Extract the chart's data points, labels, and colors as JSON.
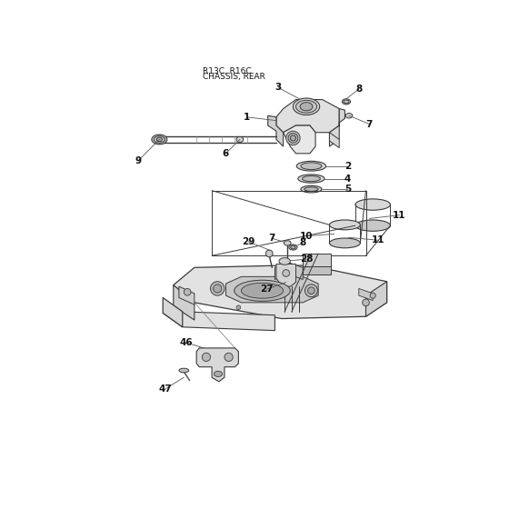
{
  "title_line1": "R13C, R16C",
  "title_line2": "CHASSIS, REAR",
  "bg_color": "#ffffff",
  "line_color": "#3a3a3a",
  "fill_light": "#e8e8e8",
  "fill_mid": "#d0d0d0",
  "fill_dark": "#bbbbbb"
}
